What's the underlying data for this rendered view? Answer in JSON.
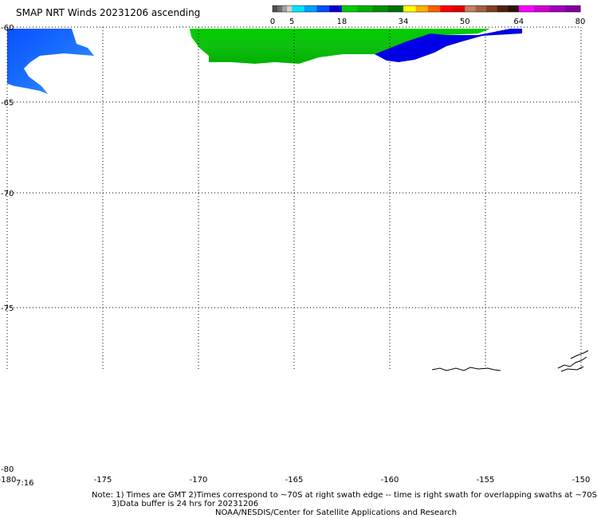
{
  "title": "SMAP NRT Winds 20231206 ascending",
  "colorbar": {
    "tick_labels": [
      "0",
      "5",
      "18",
      "34",
      "50",
      "64",
      "80"
    ],
    "segments": [
      {
        "from": 0,
        "to": 5,
        "colors": [
          "#505050",
          "#707070",
          "#a0a0a0",
          "#d0d0d0"
        ]
      },
      {
        "from": 5,
        "to": 18,
        "colors": [
          "#00e5ff",
          "#00a0ff",
          "#0050ff",
          "#0000d0"
        ]
      },
      {
        "from": 18,
        "to": 34,
        "colors": [
          "#00cc00",
          "#00b000",
          "#009000",
          "#007000"
        ]
      },
      {
        "from": 34,
        "to": 50,
        "colors": [
          "#ffff00",
          "#ffb000",
          "#ff6000",
          "#ff0000",
          "#e00000"
        ]
      },
      {
        "from": 50,
        "to": 64,
        "colors": [
          "#c08060",
          "#a06040",
          "#804020",
          "#502010",
          "#301008"
        ]
      },
      {
        "from": 64,
        "to": 80,
        "colors": [
          "#ff00ff",
          "#d000d0",
          "#a000c0",
          "#8000a0"
        ]
      }
    ]
  },
  "axes": {
    "lat_labels": [
      "-60",
      "-65",
      "-70",
      "-75",
      "-80"
    ],
    "lon_labels": [
      "-180",
      "-175",
      "-170",
      "-165",
      "-160",
      "-155",
      "-150"
    ]
  },
  "time_label": "7:16",
  "notes": [
    "Note: 1) Times are GMT 2)Times correspond to ~70S at right swath edge -- time is right swath for overlapping swaths at ~70S",
    "3)Data buffer is 24 hrs for 20231206",
    "NOAA/NESDIS/Center for Satellite Applications and Research"
  ],
  "colors": {
    "wind_5_18": "#1060ff",
    "wind_18_34": "#00cc00",
    "wind_low_blue": "#0000e0",
    "grid": "#000000",
    "coast": "#000000"
  }
}
